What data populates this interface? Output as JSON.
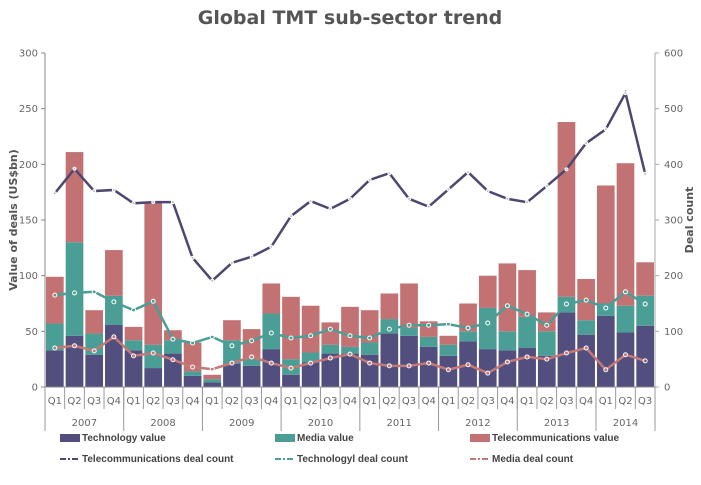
{
  "chart_data": {
    "type": "bar",
    "title": "Global TMT sub-sector trend",
    "ylabel": "Value of deals (US$bn)",
    "y2label": "Deal count",
    "ylim": [
      0,
      300
    ],
    "yticks": [
      0,
      50,
      100,
      150,
      200,
      250,
      300
    ],
    "y2lim": [
      0,
      600
    ],
    "y2ticks": [
      0,
      100,
      200,
      300,
      400,
      500,
      600
    ],
    "legend_position": "bottom",
    "grid": false,
    "years": [
      {
        "label": "2007",
        "quarters": 4
      },
      {
        "label": "2008",
        "quarters": 4
      },
      {
        "label": "2009",
        "quarters": 4
      },
      {
        "label": "2010",
        "quarters": 4
      },
      {
        "label": "2011",
        "quarters": 4
      },
      {
        "label": "2012",
        "quarters": 4
      },
      {
        "label": "2013",
        "quarters": 4
      },
      {
        "label": "2014",
        "quarters": 3
      }
    ],
    "categories": [
      "Q1",
      "Q2",
      "Q3",
      "Q4",
      "Q1",
      "Q2",
      "Q3",
      "Q4",
      "Q1",
      "Q2",
      "Q3",
      "Q4",
      "Q1",
      "Q2",
      "Q3",
      "Q4",
      "Q1",
      "Q2",
      "Q3",
      "Q4",
      "Q1",
      "Q2",
      "Q3",
      "Q4",
      "Q1",
      "Q2",
      "Q3",
      "Q4",
      "Q1",
      "Q2",
      "Q3"
    ],
    "bar_series": [
      {
        "name": "Technology value",
        "color": "#524e7e",
        "values": [
          33,
          46,
          29,
          56,
          33,
          17,
          30,
          10,
          4,
          21,
          19,
          34,
          11,
          22,
          30,
          30,
          29,
          48,
          46,
          36,
          28,
          41,
          34,
          33,
          35,
          28,
          67,
          47,
          64,
          49,
          55
        ]
      },
      {
        "name": "Media value",
        "color": "#4a9e96",
        "values": [
          24,
          84,
          19,
          26,
          9,
          21,
          12,
          4,
          3,
          21,
          7,
          32,
          14,
          9,
          8,
          6,
          11,
          13,
          7,
          9,
          10,
          9,
          37,
          17,
          28,
          22,
          14,
          13,
          11,
          24,
          27
        ]
      },
      {
        "name": "Telecommunications value",
        "color": "#c27272",
        "values": [
          42,
          81,
          21,
          41,
          12,
          128,
          9,
          26,
          4,
          18,
          26,
          27,
          56,
          42,
          20,
          36,
          29,
          23,
          40,
          14,
          8,
          25,
          29,
          61,
          42,
          17,
          157,
          37,
          106,
          128,
          30
        ]
      }
    ],
    "line_series": [
      {
        "name": "Telecommunications deal count",
        "color": "#4e4870",
        "axis": "right",
        "values": [
          348,
          392,
          352,
          354,
          330,
          332,
          332,
          232,
          191,
          223,
          234,
          252,
          307,
          334,
          320,
          338,
          372,
          384,
          338,
          324,
          355,
          386,
          352,
          338,
          332,
          361,
          391,
          438,
          463,
          528,
          383
        ]
      },
      {
        "name": "Technologyl deal count",
        "color": "#4a9e96",
        "axis": "right",
        "values": [
          165,
          169,
          171,
          153,
          138,
          154,
          86,
          79,
          90,
          74,
          83,
          97,
          88,
          92,
          104,
          92,
          88,
          104,
          111,
          111,
          113,
          106,
          115,
          146,
          131,
          111,
          149,
          156,
          142,
          171,
          149
        ]
      },
      {
        "name": "Media deal count",
        "color": "#c47878",
        "axis": "right",
        "values": [
          70,
          74,
          65,
          90,
          56,
          61,
          49,
          36,
          32,
          43,
          54,
          43,
          34,
          43,
          52,
          59,
          43,
          38,
          38,
          43,
          31,
          40,
          25,
          45,
          54,
          50,
          61,
          70,
          31,
          58,
          47
        ]
      }
    ]
  }
}
